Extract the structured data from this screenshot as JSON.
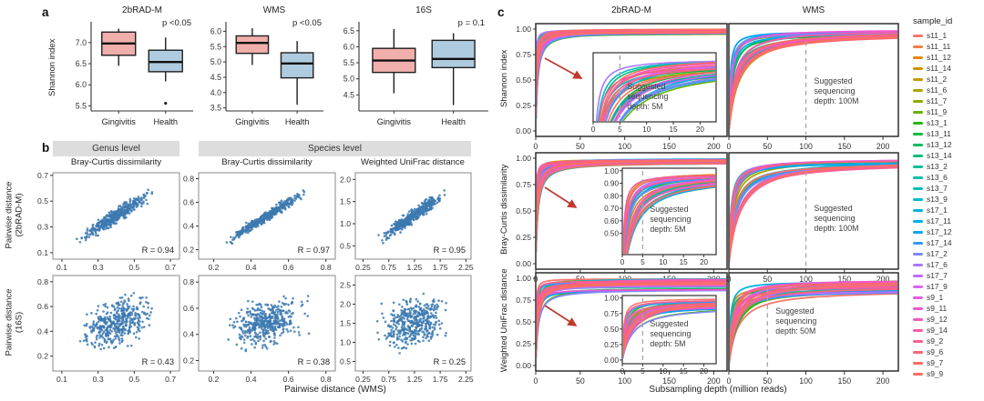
{
  "chart_data": {
    "type": [
      "boxplot",
      "scatter",
      "line"
    ],
    "panel_a": {
      "label": "a",
      "ylabel": "Shannon index",
      "categories": [
        "Gingivitis",
        "Health"
      ],
      "colors": [
        "#F1AFAB",
        "#AECBDF"
      ],
      "plots": [
        {
          "title": "2bRAD-M",
          "p_label": "p <0.05",
          "ylim": [
            5.38,
            7.45
          ],
          "yticks": [
            "5.5",
            "6.0",
            "6.5",
            "7.0"
          ],
          "groups": [
            {
              "name": "Gingivitis",
              "low": 6.45,
              "q1": 6.7,
              "median": 6.98,
              "q3": 7.25,
              "high": 7.33,
              "outliers": []
            },
            {
              "name": "Health",
              "low": 6.08,
              "q1": 6.31,
              "median": 6.54,
              "q3": 6.82,
              "high": 7.12,
              "outliers": [
                5.56
              ]
            }
          ]
        },
        {
          "title": "WMS",
          "p_label": "p <0.05",
          "ylim": [
            3.4,
            6.25
          ],
          "yticks": [
            "3.5",
            "4.0",
            "4.5",
            "5.0",
            "5.5",
            "6.0"
          ],
          "groups": [
            {
              "name": "Gingivitis",
              "low": 4.9,
              "q1": 5.28,
              "median": 5.62,
              "q3": 5.85,
              "high": 6.1,
              "outliers": []
            },
            {
              "name": "Health",
              "low": 3.6,
              "q1": 4.48,
              "median": 4.95,
              "q3": 5.3,
              "high": 5.68,
              "outliers": []
            }
          ]
        },
        {
          "title": "16S",
          "p_label": "p = 0.1",
          "ylim": [
            4.0,
            6.72
          ],
          "yticks": [
            "4.5",
            "5.0",
            "5.5",
            "6.0",
            "6.5"
          ],
          "groups": [
            {
              "name": "Gingivitis",
              "low": 4.55,
              "q1": 5.2,
              "median": 5.57,
              "q3": 5.95,
              "high": 6.55,
              "outliers": []
            },
            {
              "name": "Health",
              "low": 4.18,
              "q1": 5.35,
              "median": 5.62,
              "q3": 6.2,
              "high": 6.42,
              "outliers": []
            }
          ]
        }
      ]
    },
    "panel_b": {
      "label": "b",
      "headers": [
        "Genus level",
        "Species level"
      ],
      "titles": [
        "Bray-Curtis dissimilarity",
        "Bray-Curtis dissimilarity",
        "Weighted UniFrac distance"
      ],
      "ylabels": [
        "Pairwise distance\n(2bRAD-M)",
        "Pairwise distance\n(16S)"
      ],
      "xlabel": "Pairwise distance (WMS)",
      "point_color": "#3C79B0",
      "plots": [
        {
          "r_label": "R = 0.94",
          "R": 0.94,
          "n": 430,
          "xlim": [
            0.05,
            0.75
          ],
          "xticks": [
            "0.1",
            "0.3",
            "0.5",
            "0.7"
          ],
          "ylim": [
            0.05,
            0.72
          ],
          "yticks": [
            "0.1",
            "0.3",
            "0.5",
            "0.7"
          ]
        },
        {
          "r_label": "R = 0.97",
          "R": 0.97,
          "n": 430,
          "xlim": [
            0.12,
            0.85
          ],
          "xticks": [
            "0.2",
            "0.4",
            "0.6",
            "0.8"
          ],
          "ylim": [
            0.12,
            0.85
          ],
          "yticks": [
            "0.2",
            "0.4",
            "0.6",
            "0.8"
          ]
        },
        {
          "r_label": "R = 0.95",
          "R": 0.95,
          "n": 430,
          "xlim": [
            0.1,
            2.35
          ],
          "xticks": [
            "0.25",
            "0.75",
            "1.25",
            "1.75",
            "2.25"
          ],
          "ylim": [
            0.2,
            2.15
          ],
          "yticks": [
            "0.5",
            "1.0",
            "1.5",
            "2.0"
          ]
        },
        {
          "r_label": "R = 0.43",
          "R": 0.43,
          "n": 430,
          "xlim": [
            0.05,
            0.75
          ],
          "xticks": [
            "0.1",
            "0.3",
            "0.5",
            "0.7"
          ],
          "ylim": [
            0.08,
            0.85
          ],
          "yticks": [
            "0.2",
            "0.4",
            "0.6",
            "0.8"
          ]
        },
        {
          "r_label": "R = 0.38",
          "R": 0.38,
          "n": 430,
          "xlim": [
            0.12,
            0.85
          ],
          "xticks": [
            "0.2",
            "0.4",
            "0.6",
            "0.8"
          ],
          "ylim": [
            0.12,
            0.85
          ],
          "yticks": [
            "0.2",
            "0.4",
            "0.6",
            "0.8"
          ]
        },
        {
          "r_label": "R = 0.25",
          "R": 0.25,
          "n": 430,
          "xlim": [
            0.1,
            2.35
          ],
          "xticks": [
            "0.25",
            "0.75",
            "1.25",
            "1.75",
            "2.25"
          ],
          "ylim": [
            0.25,
            2.75
          ],
          "yticks": [
            "0.5",
            "1.0",
            "1.5",
            "2.0",
            "2.5"
          ]
        }
      ]
    },
    "panel_c": {
      "label": "c",
      "col_headers": [
        "2bRAD-M",
        "WMS"
      ],
      "xlabel": "Subsampling depth (million reads)",
      "yticks": [
        "1.00",
        "0.75",
        "0.50",
        "0.25",
        "0.00"
      ],
      "rows": [
        {
          "ylabel": "Shannon index",
          "left": {
            "xmax": 215,
            "xticks": [
              0,
              50,
              100,
              150,
              200
            ],
            "k": [
              0.25,
              2.2
            ],
            "plateau": [
              0.955,
              1.0
            ],
            "arrow": true,
            "inset": {
              "xmax": 23,
              "xticks": [
                0,
                5,
                10,
                15,
                20
              ],
              "yticks": [],
              "ylim": [
                0.7,
                1.02
              ],
              "vline": 5,
              "note": "Suggested sequencing depth: 5M"
            }
          },
          "right": {
            "xmax": 220,
            "xticks": [
              0,
              50,
              100,
              150,
              200
            ],
            "k": [
              1.5,
              14
            ],
            "plateau": [
              0.955,
              1.0
            ],
            "vline": 100,
            "note": "Suggested sequencing depth: 100M"
          }
        },
        {
          "ylabel": "Bray-Curtis dissimilarity",
          "left": {
            "xmax": 215,
            "xticks": [
              0,
              50,
              100,
              150,
              200
            ],
            "k": [
              0.3,
              2.5
            ],
            "plateau": [
              0.95,
              1.0
            ],
            "arrow": true,
            "inset": {
              "xmax": 23,
              "xticks": [
                0,
                5,
                10,
                15,
                20
              ],
              "yticks": [
                "1.00",
                "0.90",
                "0.80",
                "0.70",
                "0.60",
                "0.50"
              ],
              "ylim": [
                0.33,
                1.02
              ],
              "vline": 5,
              "note": "Suggested sequencing depth: 5M"
            }
          },
          "right": {
            "xmax": 220,
            "xticks": [
              0,
              50,
              100,
              150,
              200
            ],
            "k": [
              2,
              16
            ],
            "plateau": [
              0.95,
              1.0
            ],
            "vline": 100,
            "note": "Suggested sequencing depth: 100M"
          }
        },
        {
          "ylabel": "Weighted UniFrac distance",
          "left": {
            "xmax": 215,
            "xticks": [
              0,
              50,
              100,
              150,
              200
            ],
            "k": [
              0.3,
              3.0
            ],
            "plateau": [
              0.86,
              1.0
            ],
            "arrow": true,
            "inset": {
              "xmax": 23,
              "xticks": [
                0,
                5,
                10,
                15,
                20
              ],
              "yticks": [
                "1.00",
                "0.75",
                "0.50",
                "0.25",
                "0.00"
              ],
              "ylim": [
                -0.06,
                1.04
              ],
              "vline": 5,
              "note": "Suggested sequencing depth: 5M"
            }
          },
          "right": {
            "xmax": 220,
            "xticks": [
              0,
              50,
              100,
              150,
              200
            ],
            "k": [
              1.5,
              12
            ],
            "plateau": [
              0.86,
              1.0
            ],
            "vline": 50,
            "note": "Suggested sequencing depth: 50M"
          }
        }
      ],
      "legend": {
        "title": "sample_id",
        "items": [
          {
            "id": "s11_1",
            "color": "#F8766D"
          },
          {
            "id": "s11_11",
            "color": "#EF7F49"
          },
          {
            "id": "s11_12",
            "color": "#E58700"
          },
          {
            "id": "s11_14",
            "color": "#D89000"
          },
          {
            "id": "s11_2",
            "color": "#C49A00"
          },
          {
            "id": "s11_6",
            "color": "#ABA300"
          },
          {
            "id": "s11_7",
            "color": "#8CAB00"
          },
          {
            "id": "s11_9",
            "color": "#64B200"
          },
          {
            "id": "s13_1",
            "color": "#24B700"
          },
          {
            "id": "s13_11",
            "color": "#00BB38"
          },
          {
            "id": "s13_12",
            "color": "#00BE5C"
          },
          {
            "id": "s13_14",
            "color": "#00C078"
          },
          {
            "id": "s13_2",
            "color": "#00C091"
          },
          {
            "id": "s13_6",
            "color": "#00BFA6"
          },
          {
            "id": "s13_7",
            "color": "#00BDBC"
          },
          {
            "id": "s13_9",
            "color": "#00BACF"
          },
          {
            "id": "s17_1",
            "color": "#00B5E0"
          },
          {
            "id": "s17_11",
            "color": "#00AEEE"
          },
          {
            "id": "s17_12",
            "color": "#00A5F9"
          },
          {
            "id": "s17_14",
            "color": "#3598FF"
          },
          {
            "id": "s17_2",
            "color": "#7E88FF"
          },
          {
            "id": "s17_6",
            "color": "#A878FF"
          },
          {
            "id": "s17_7",
            "color": "#C56AFF"
          },
          {
            "id": "s17_9",
            "color": "#DA62F4"
          },
          {
            "id": "s9_1",
            "color": "#E95CE6"
          },
          {
            "id": "s9_11",
            "color": "#F155D2"
          },
          {
            "id": "s9_12",
            "color": "#F756BC"
          },
          {
            "id": "s9_14",
            "color": "#FA5AA5"
          },
          {
            "id": "s9_2",
            "color": "#FC5E8D"
          },
          {
            "id": "s9_6",
            "color": "#FC6475"
          },
          {
            "id": "s9_7",
            "color": "#FB6C64"
          },
          {
            "id": "s9_9",
            "color": "#F9725C"
          }
        ]
      }
    }
  }
}
